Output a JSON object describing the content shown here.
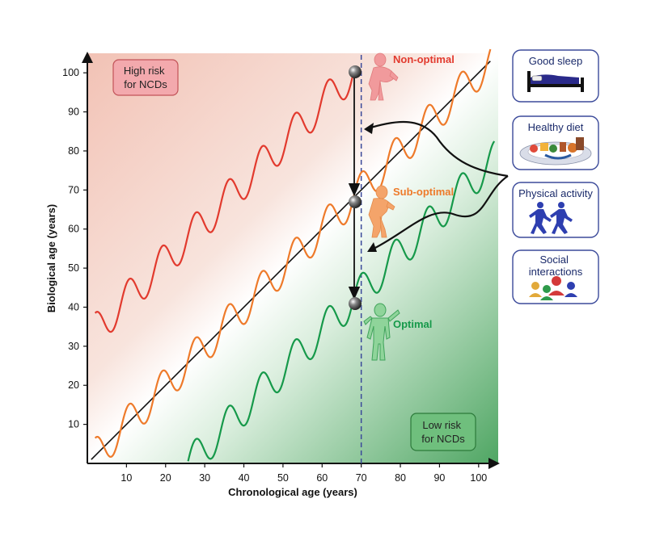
{
  "chart_data": {
    "type": "line",
    "xlabel": "Chronological age (years)",
    "ylabel": "Biological age (years)",
    "xlim": [
      0,
      105
    ],
    "ylim": [
      0,
      105
    ],
    "x_ticks": [
      10,
      20,
      30,
      40,
      50,
      60,
      70,
      80,
      90,
      100
    ],
    "y_ticks": [
      10,
      20,
      30,
      40,
      50,
      60,
      70,
      80,
      90,
      100
    ],
    "reference_line": "biological age = chronological age",
    "marker_line_x": 70,
    "series": [
      {
        "name": "Non-optimal",
        "color": "#e23a2e",
        "offset": 32,
        "amplitude": 4.5,
        "period": 8.5,
        "x_start": 2,
        "x_end": 68,
        "point_at_70": 102
      },
      {
        "name": "Sub-optimal",
        "color": "#ee7a2a",
        "offset": 0,
        "amplitude": 4.5,
        "period": 8.5,
        "x_start": 2,
        "x_end": 103,
        "point_at_70": 69
      },
      {
        "name": "Optimal",
        "color": "#16994a",
        "offset": -26,
        "amplitude": 4.5,
        "period": 8.5,
        "x_start": 4,
        "x_end": 104,
        "point_at_70": 43
      }
    ],
    "grid": false
  },
  "regions": {
    "high_risk": "High risk\nfor NCDs",
    "low_risk": "Low risk\nfor NCDs"
  },
  "lifestyle_factors": [
    {
      "label": "Good sleep",
      "icon": "bed-icon"
    },
    {
      "label": "Healthy diet",
      "icon": "food-plate-icon"
    },
    {
      "label": "Physical activity",
      "icon": "runners-icon"
    },
    {
      "label": "Social\ninteractions",
      "icon": "people-group-icon"
    }
  ],
  "colors": {
    "high_risk_fill": "#f4cfc4",
    "low_risk_fill": "#5fae6c",
    "marker_line": "#3b4a9a",
    "box_border": "#3b4a9a"
  }
}
